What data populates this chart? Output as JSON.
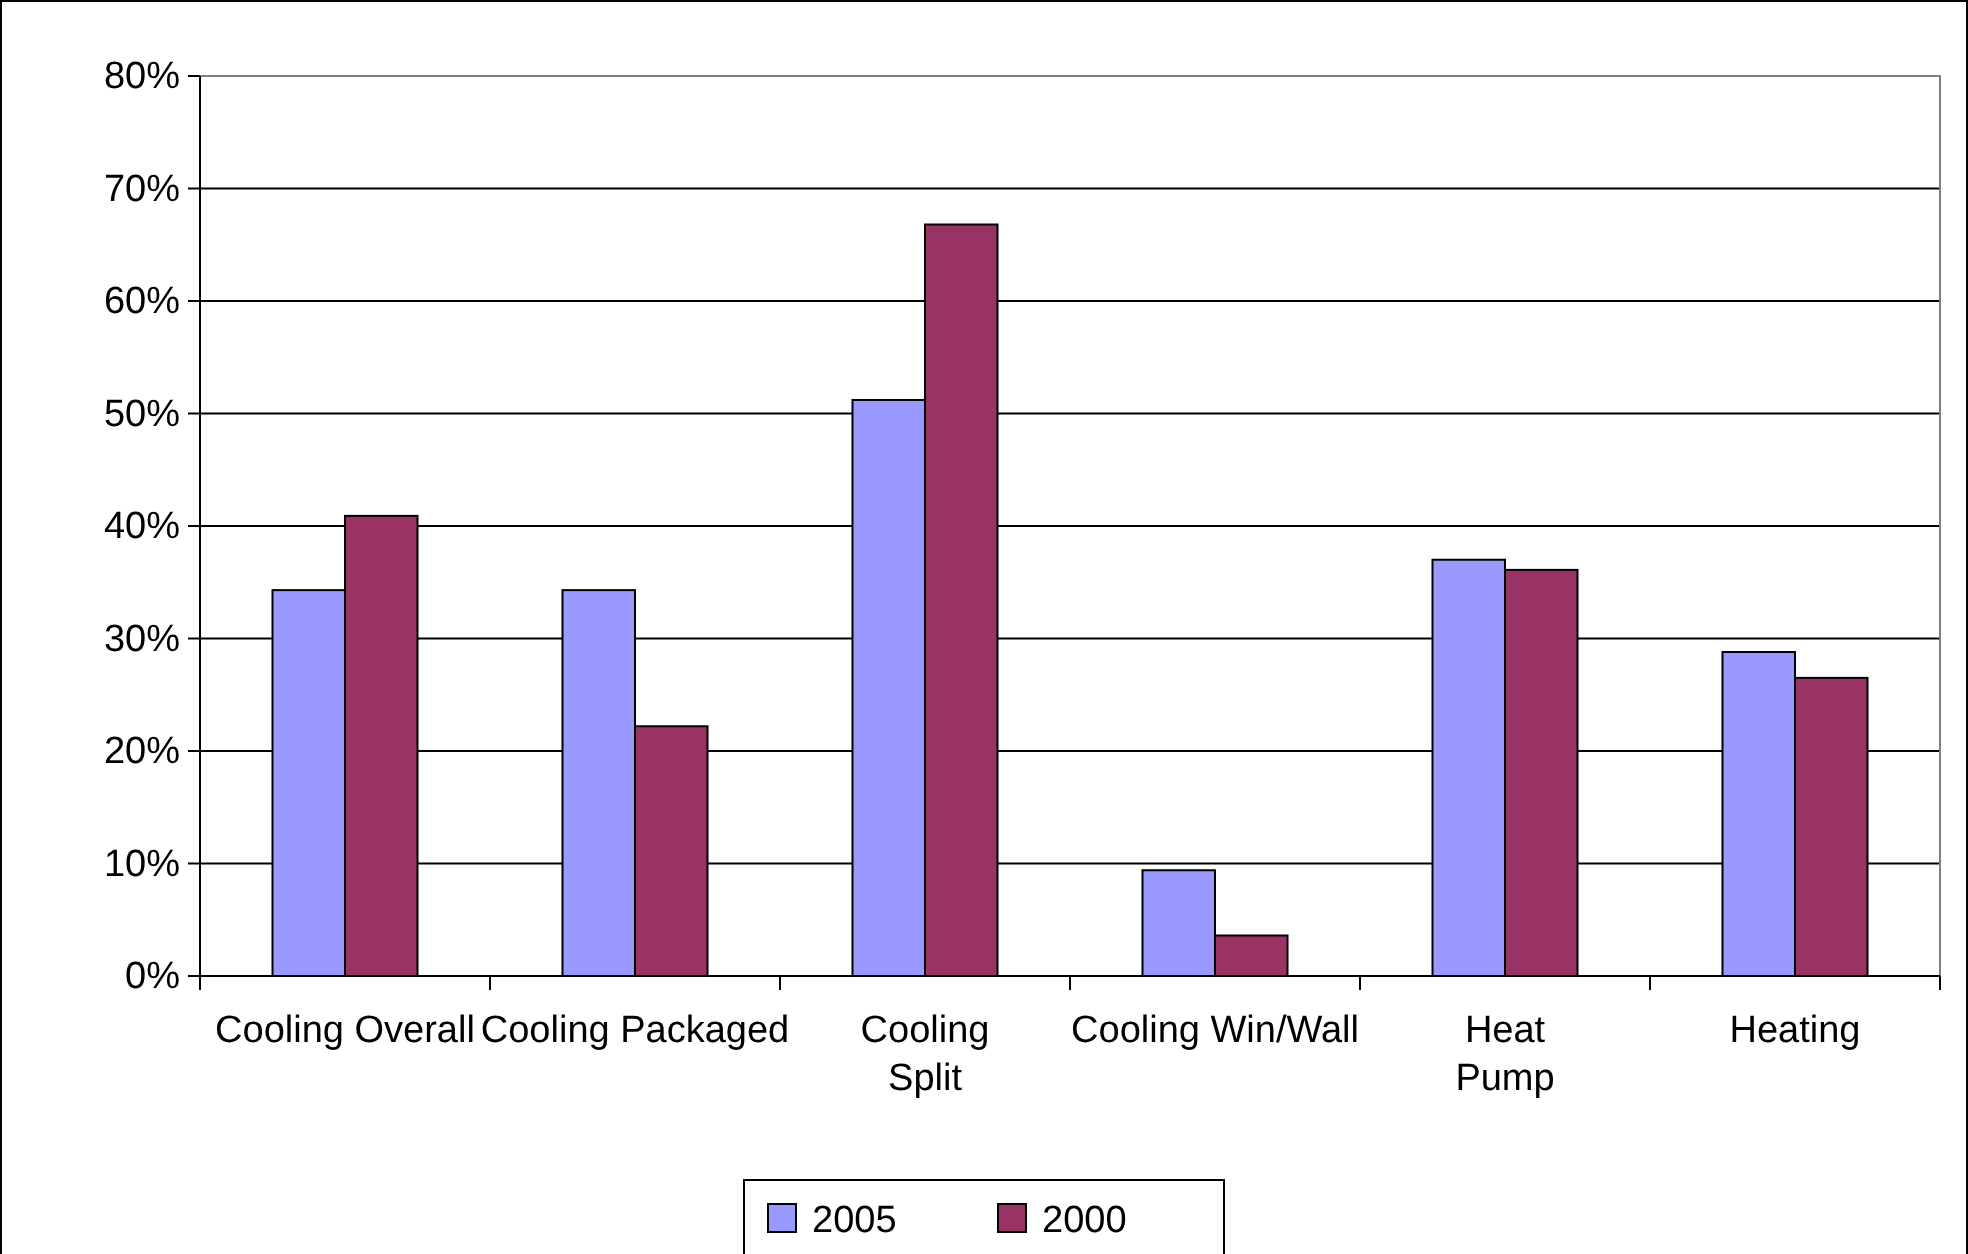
{
  "chart_data": {
    "type": "bar",
    "categories": [
      "Cooling Overall",
      "Cooling Packaged",
      "Cooling Split",
      "Cooling Win/Wall",
      "Heat Pump",
      "Heating"
    ],
    "series": [
      {
        "name": "2005",
        "color": "#9999ff",
        "values": [
          34.3,
          34.3,
          51.2,
          9.4,
          37.0,
          28.8
        ]
      },
      {
        "name": "2000",
        "color": "#993366",
        "values": [
          40.9,
          22.2,
          66.8,
          3.6,
          36.1,
          26.5
        ]
      }
    ],
    "ylim": [
      0,
      80
    ],
    "yticks": [
      {
        "value": 0,
        "label": "0%"
      },
      {
        "value": 10,
        "label": "10%"
      },
      {
        "value": 20,
        "label": "20%"
      },
      {
        "value": 30,
        "label": "30%"
      },
      {
        "value": 40,
        "label": "40%"
      },
      {
        "value": 50,
        "label": "50%"
      },
      {
        "value": 60,
        "label": "60%"
      },
      {
        "value": 70,
        "label": "70%"
      },
      {
        "value": 80,
        "label": "80%"
      }
    ],
    "grid": "y",
    "legend": "bottom"
  }
}
